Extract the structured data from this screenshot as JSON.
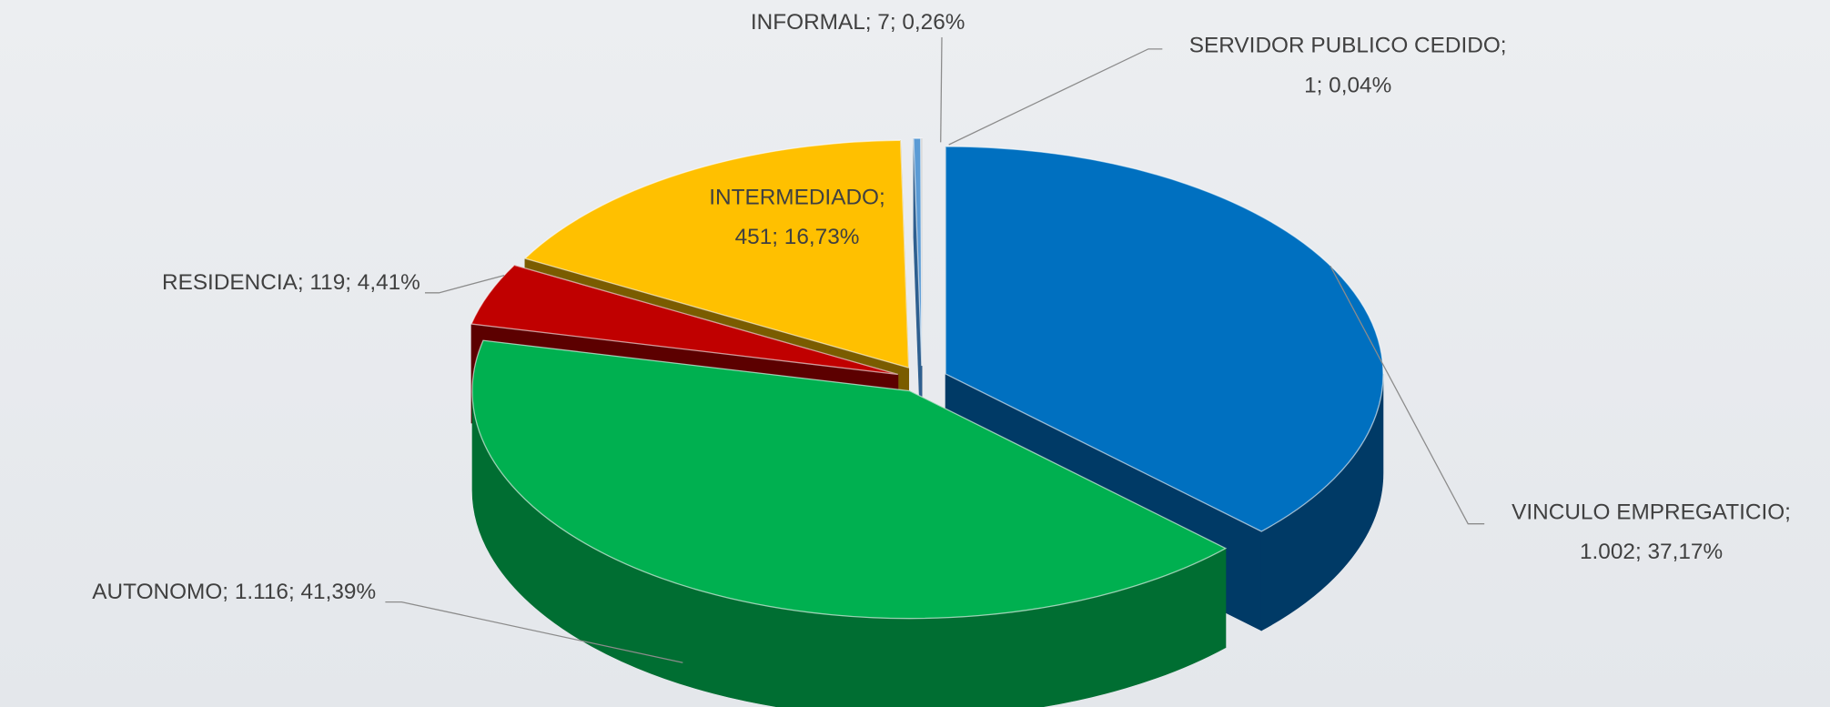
{
  "chart_data": {
    "type": "pie3d",
    "categories": [
      "VINCULO EMPREGATICIO",
      "AUTONOMO",
      "RESIDENCIA",
      "INTERMEDIADO",
      "INFORMAL",
      "SERVIDOR PUBLICO CEDIDO"
    ],
    "values": [
      1002,
      1116,
      119,
      451,
      7,
      1
    ],
    "labels": [
      [
        "VINCULO EMPREGATICIO;",
        "1.002; 37,17%"
      ],
      [
        "AUTONOMO; 1.116; 41,39%"
      ],
      [
        "RESIDENCIA; 119; 4,41%"
      ],
      [
        "INTERMEDIADO;",
        "451; 16,73%"
      ],
      [
        "INFORMAL; 7; 0,26%"
      ],
      [
        "SERVIDOR PUBLICO CEDIDO;",
        "1; 0,04%"
      ]
    ],
    "colors": [
      "#0070c0",
      "#00b050",
      "#c00000",
      "#ffc000",
      "#5b9bd5",
      "#a5a5a5"
    ],
    "side_colors": [
      "#003a66",
      "#006e32",
      "#5c0000",
      "#7a5c00",
      "#2e5f8f",
      "#6b6b6b"
    ]
  }
}
